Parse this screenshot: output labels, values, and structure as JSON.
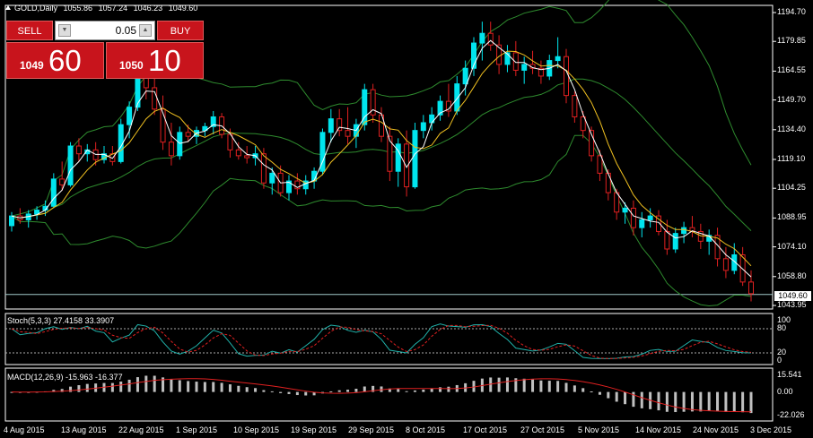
{
  "header": {
    "symbol": "GOLD,Daily",
    "open": "1055.86",
    "high": "1057.24",
    "low": "1046.23",
    "close": "1049.60"
  },
  "trade_panel": {
    "sell_label": "SELL",
    "buy_label": "BUY",
    "lot_value": "0.05",
    "bid_small": "1049",
    "bid_big": "60",
    "ask_small": "1050",
    "ask_big": "10"
  },
  "price_axis": [
    "1194.70",
    "1179.85",
    "1164.55",
    "1149.70",
    "1134.40",
    "1119.10",
    "1104.25",
    "1088.95",
    "1074.10",
    "1058.80",
    "1043.95"
  ],
  "current_price": "1049.60",
  "stoch": {
    "label": "Stoch(5,3,3) 27.4158 33.3907",
    "levels": [
      "100",
      "80",
      "20",
      "0"
    ],
    "k_value": 27.4158,
    "d_value": 33.3907
  },
  "macd": {
    "label": "MACD(12,26,9) -15.963 -16.377",
    "levels": [
      "15.541",
      "0.00",
      "-22.026"
    ],
    "macd_value": -15.963,
    "signal_value": -16.377
  },
  "time_axis": [
    "4 Aug 2015",
    "13 Aug 2015",
    "22 Aug 2015",
    "1 Sep 2015",
    "10 Sep 2015",
    "19 Sep 2015",
    "29 Sep 2015",
    "8 Oct 2015",
    "17 Oct 2015",
    "27 Oct 2015",
    "5 Nov 2015",
    "14 Nov 2015",
    "24 Nov 2015",
    "3 Dec 2015"
  ],
  "colors": {
    "bull_candle": "#00e5ee",
    "bear_candle": "#e02020",
    "ma_fast": "#ffffff",
    "ma_slow": "#f0c020",
    "bollinger": "#2e8b2e",
    "stoch_k": "#20b2aa",
    "stoch_d": "#e02020",
    "macd_hist": "#c0c0c0",
    "macd_signal": "#e02020"
  },
  "chart_data": {
    "type": "candlestick",
    "symbol": "GOLD",
    "timeframe": "Daily",
    "ylim": [
      1043.95,
      1194.7
    ],
    "candles": [
      [
        1085,
        1092,
        1082,
        1090
      ],
      [
        1090,
        1094,
        1086,
        1088
      ],
      [
        1088,
        1093,
        1084,
        1091
      ],
      [
        1091,
        1095,
        1088,
        1093
      ],
      [
        1093,
        1098,
        1090,
        1095
      ],
      [
        1095,
        1112,
        1094,
        1109
      ],
      [
        1109,
        1118,
        1103,
        1106
      ],
      [
        1106,
        1128,
        1105,
        1126
      ],
      [
        1126,
        1130,
        1118,
        1122
      ],
      [
        1122,
        1127,
        1118,
        1124
      ],
      [
        1124,
        1128,
        1116,
        1119
      ],
      [
        1119,
        1126,
        1117,
        1122
      ],
      [
        1122,
        1126,
        1116,
        1118
      ],
      [
        1118,
        1140,
        1117,
        1137
      ],
      [
        1137,
        1149,
        1130,
        1146
      ],
      [
        1146,
        1165,
        1144,
        1161
      ],
      [
        1161,
        1168,
        1150,
        1156
      ],
      [
        1156,
        1165,
        1142,
        1145
      ],
      [
        1145,
        1152,
        1124,
        1128
      ],
      [
        1128,
        1138,
        1116,
        1121
      ],
      [
        1121,
        1136,
        1119,
        1133
      ],
      [
        1133,
        1137,
        1128,
        1131
      ],
      [
        1131,
        1136,
        1127,
        1134
      ],
      [
        1134,
        1138,
        1131,
        1136
      ],
      [
        1136,
        1144,
        1132,
        1141
      ],
      [
        1141,
        1143,
        1130,
        1132
      ],
      [
        1132,
        1135,
        1120,
        1124
      ],
      [
        1124,
        1128,
        1119,
        1121
      ],
      [
        1121,
        1126,
        1117,
        1120
      ],
      [
        1120,
        1126,
        1116,
        1122
      ],
      [
        1122,
        1125,
        1104,
        1107
      ],
      [
        1107,
        1115,
        1101,
        1112
      ],
      [
        1112,
        1116,
        1100,
        1102
      ],
      [
        1102,
        1111,
        1098,
        1108
      ],
      [
        1108,
        1112,
        1101,
        1104
      ],
      [
        1104,
        1111,
        1101,
        1108
      ],
      [
        1108,
        1115,
        1104,
        1113
      ],
      [
        1113,
        1135,
        1111,
        1133
      ],
      [
        1133,
        1145,
        1128,
        1140
      ],
      [
        1140,
        1145,
        1131,
        1134
      ],
      [
        1134,
        1146,
        1127,
        1131
      ],
      [
        1131,
        1140,
        1125,
        1137
      ],
      [
        1137,
        1158,
        1134,
        1155
      ],
      [
        1155,
        1158,
        1138,
        1142
      ],
      [
        1142,
        1146,
        1128,
        1131
      ],
      [
        1131,
        1136,
        1108,
        1113
      ],
      [
        1113,
        1130,
        1105,
        1127
      ],
      [
        1127,
        1134,
        1100,
        1105
      ],
      [
        1105,
        1138,
        1104,
        1134
      ],
      [
        1134,
        1142,
        1130,
        1138
      ],
      [
        1138,
        1146,
        1134,
        1142
      ],
      [
        1142,
        1152,
        1139,
        1149
      ],
      [
        1149,
        1158,
        1141,
        1144
      ],
      [
        1144,
        1162,
        1142,
        1158
      ],
      [
        1158,
        1170,
        1152,
        1166
      ],
      [
        1166,
        1182,
        1162,
        1179
      ],
      [
        1179,
        1190,
        1170,
        1184
      ],
      [
        1184,
        1190,
        1175,
        1178
      ],
      [
        1178,
        1183,
        1163,
        1168
      ],
      [
        1168,
        1178,
        1164,
        1174
      ],
      [
        1174,
        1180,
        1162,
        1165
      ],
      [
        1165,
        1172,
        1158,
        1168
      ],
      [
        1168,
        1175,
        1163,
        1166
      ],
      [
        1166,
        1170,
        1158,
        1162
      ],
      [
        1162,
        1173,
        1160,
        1170
      ],
      [
        1170,
        1182,
        1166,
        1172
      ],
      [
        1172,
        1176,
        1148,
        1152
      ],
      [
        1152,
        1154,
        1138,
        1141
      ],
      [
        1141,
        1144,
        1130,
        1134
      ],
      [
        1134,
        1136,
        1118,
        1121
      ],
      [
        1121,
        1124,
        1108,
        1112
      ],
      [
        1112,
        1114,
        1098,
        1102
      ],
      [
        1102,
        1104,
        1088,
        1092
      ],
      [
        1092,
        1097,
        1086,
        1094
      ],
      [
        1094,
        1098,
        1080,
        1084
      ],
      [
        1084,
        1092,
        1079,
        1088
      ],
      [
        1088,
        1094,
        1084,
        1090
      ],
      [
        1090,
        1093,
        1080,
        1082
      ],
      [
        1082,
        1088,
        1070,
        1073
      ],
      [
        1073,
        1084,
        1071,
        1081
      ],
      [
        1081,
        1087,
        1076,
        1084
      ],
      [
        1084,
        1090,
        1079,
        1082
      ],
      [
        1082,
        1086,
        1073,
        1077
      ],
      [
        1077,
        1083,
        1070,
        1080
      ],
      [
        1080,
        1084,
        1064,
        1068
      ],
      [
        1068,
        1074,
        1058,
        1062
      ],
      [
        1062,
        1076,
        1060,
        1070
      ],
      [
        1070,
        1074,
        1054,
        1056
      ],
      [
        1056,
        1062,
        1046,
        1050
      ]
    ]
  }
}
